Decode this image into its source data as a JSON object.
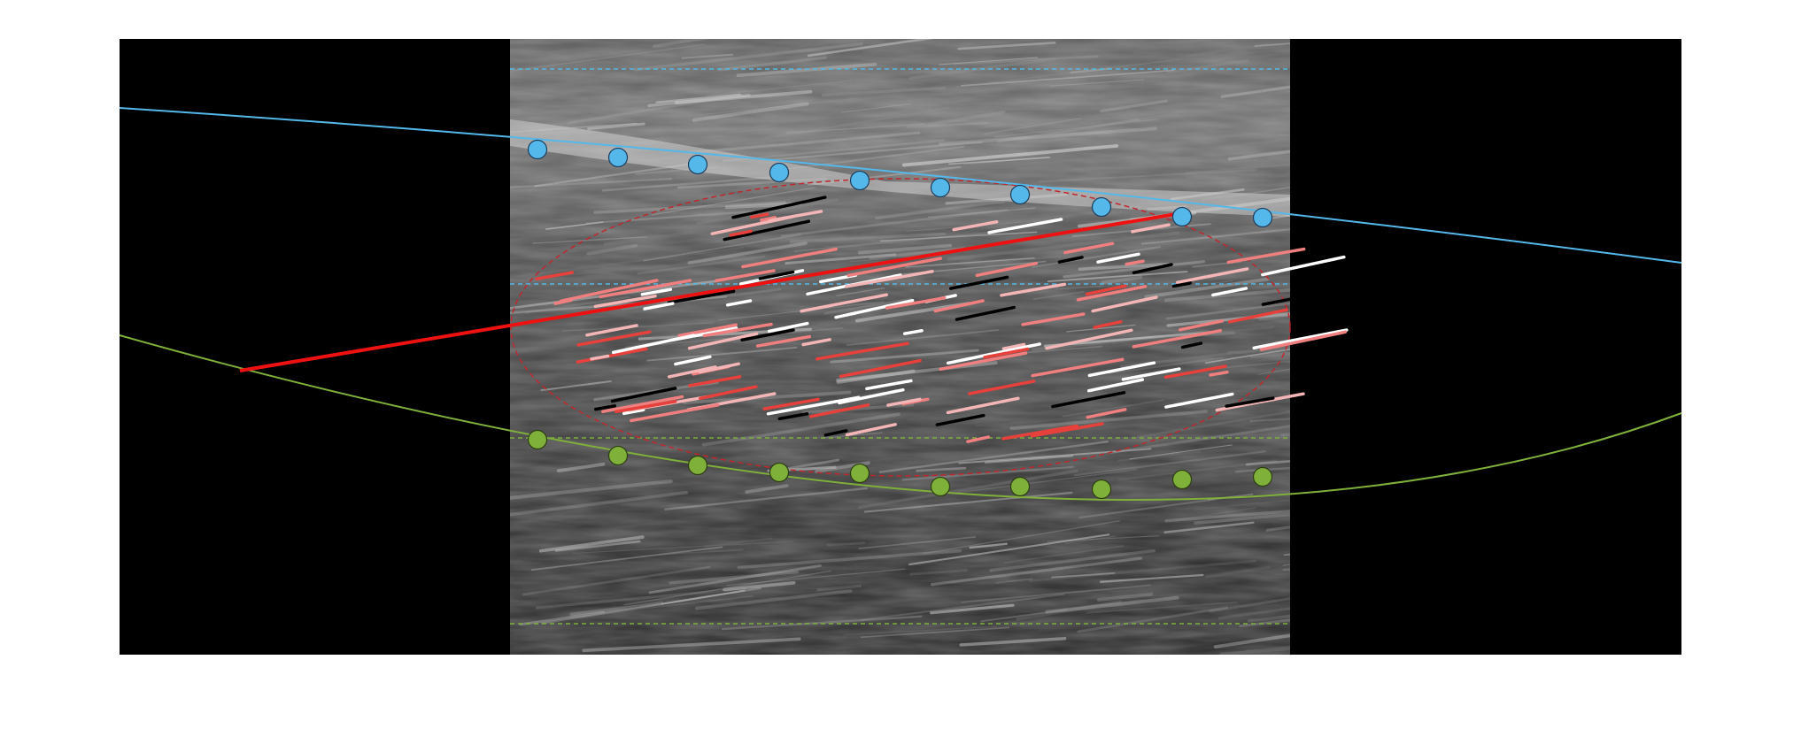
{
  "colors": {
    "background": "#ffffff",
    "canvas": "#000000",
    "upper_aponeurosis": "#55b8ea",
    "lower_aponeurosis": "#7fb03a",
    "fascicle_line": "#ee1111",
    "roi_ellipse": "#c0272d",
    "fascicle_segment_colors": [
      "#e8403a",
      "#f07f7f",
      "#f3b5b5",
      "#ffffff",
      "#000000"
    ]
  },
  "figure": {
    "type": "ultrasound-muscle-architecture-annotation",
    "upper_aponeurosis_points": 10,
    "lower_aponeurosis_points": 10,
    "fascicle_lines": 1
  }
}
